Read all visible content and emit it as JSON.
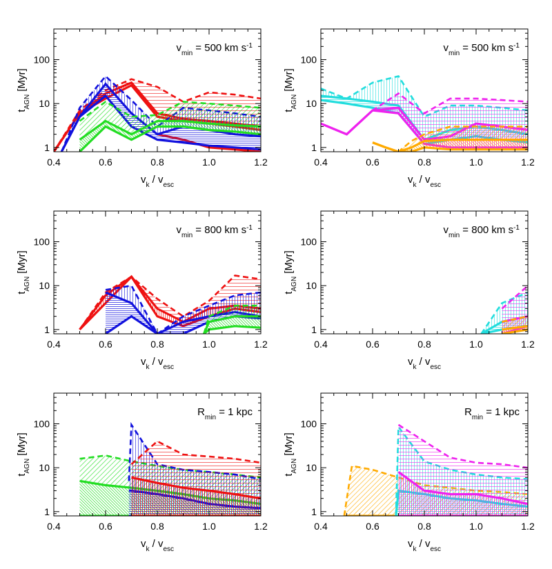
{
  "figure": {
    "xlabel_main": "v",
    "xlabel_sub1": "k",
    "xlabel_mid": " / v",
    "xlabel_sub2": "esc",
    "ylabel_main": "t",
    "ylabel_sub": "AGN",
    "ylabel_tail": " [Myr]"
  },
  "colors": {
    "red": "#ee1111",
    "blue": "#1111dd",
    "green": "#22dd22",
    "cyan": "#22dddd",
    "magenta": "#ee22ee",
    "orange": "#ffaa00"
  },
  "chart_data": [
    {
      "type": "area",
      "panel": "top-left",
      "xlim": [
        0.4,
        1.2
      ],
      "ylim": [
        0.8,
        500
      ],
      "yscale": "log",
      "xticks": [
        "0.4",
        "0.6",
        "0.8",
        "1.0",
        "1.2"
      ],
      "yticks": [
        "1",
        "10",
        "100"
      ],
      "annotation": {
        "main": "v",
        "sub": "min",
        "rest": " = 500 km s",
        "sup": "-1"
      },
      "series": [
        {
          "color": "red",
          "x": [
            0.4,
            0.5,
            0.6,
            0.7,
            0.8,
            0.9,
            1.0,
            1.1,
            1.2
          ],
          "low": [
            0.8,
            6,
            13,
            26,
            5,
            4,
            3.5,
            3,
            2.5
          ],
          "mid": [
            0.8,
            6,
            17,
            30,
            6,
            4.5,
            4,
            3.5,
            3
          ],
          "high": [
            0.8,
            7,
            20,
            36,
            24,
            11,
            18,
            16,
            13
          ],
          "bottom": [
            null,
            null,
            null,
            null,
            2,
            1.5,
            1,
            0.9,
            0.8
          ]
        },
        {
          "color": "blue",
          "x": [
            0.43,
            0.5,
            0.6,
            0.7,
            0.8,
            0.9,
            1.0,
            1.1,
            1.2
          ],
          "low": [
            0.8,
            5,
            15,
            3,
            1.5,
            1.3,
            1.1,
            1,
            0.9
          ],
          "mid": [
            0.8,
            5,
            28,
            6,
            2,
            3,
            2.5,
            2,
            1.8
          ],
          "high": [
            0.8,
            8,
            42,
            12,
            3,
            8,
            7,
            6,
            5
          ]
        },
        {
          "color": "green",
          "x": [
            0.5,
            0.6,
            0.7,
            0.8,
            0.9,
            1.0,
            1.1,
            1.2
          ],
          "low": [
            0.8,
            3,
            1.5,
            3,
            3,
            2.5,
            2.3,
            2
          ],
          "mid": [
            1.5,
            4,
            2,
            4,
            4,
            3.5,
            3.2,
            3
          ],
          "high": [
            4,
            11,
            5,
            5.5,
            11,
            10,
            9,
            8
          ]
        }
      ]
    },
    {
      "type": "area",
      "panel": "top-right",
      "xlim": [
        0.4,
        1.2
      ],
      "ylim": [
        0.8,
        500
      ],
      "yscale": "log",
      "xticks": [
        "0.4",
        "0.6",
        "0.8",
        "1.0",
        "1.2"
      ],
      "yticks": [
        "1",
        "10",
        "100"
      ],
      "annotation": {
        "main": "v",
        "sub": "min",
        "rest": " = 500 km s",
        "sup": "-1"
      },
      "series": [
        {
          "color": "cyan",
          "x": [
            0.4,
            0.5,
            0.6,
            0.7,
            0.8,
            0.9,
            1.0,
            1.1,
            1.2
          ],
          "low": [
            12,
            10,
            8,
            6,
            1.2,
            1.5,
            1.8,
            1.5,
            1.3
          ],
          "mid": [
            15,
            13,
            11,
            9,
            1.5,
            2.5,
            3,
            2.5,
            2
          ],
          "high": [
            22,
            13,
            30,
            42,
            5,
            9,
            9,
            8,
            7
          ]
        },
        {
          "color": "magenta",
          "x": [
            0.4,
            0.5,
            0.6,
            0.7,
            0.8,
            0.9,
            1.0,
            1.1,
            1.2
          ],
          "low": [
            3.5,
            2,
            7,
            6,
            1.2,
            1,
            1,
            1,
            1
          ],
          "mid": [
            3.5,
            2,
            7,
            8,
            1.5,
            1.8,
            3.5,
            3,
            2.5
          ],
          "high": [
            3.5,
            2,
            7,
            17,
            6,
            13,
            13,
            12,
            11
          ]
        },
        {
          "color": "orange",
          "x": [
            0.6,
            0.65,
            0.7,
            0.75,
            0.8,
            0.9,
            1.0,
            1.1,
            1.2
          ],
          "low": [
            1.3,
            1,
            0.8,
            0.8,
            1,
            0.9,
            0.9,
            0.9,
            0.9
          ],
          "mid": [
            1.3,
            1,
            0.8,
            1,
            1.4,
            1.5,
            1.5,
            1.5,
            1.5
          ],
          "high": [
            1.3,
            1,
            0.8,
            1.4,
            2,
            3,
            3,
            3,
            3
          ]
        }
      ]
    },
    {
      "type": "area",
      "panel": "middle-left",
      "xlim": [
        0.4,
        1.2
      ],
      "ylim": [
        0.8,
        500
      ],
      "yscale": "log",
      "xticks": [
        "0.4",
        "0.6",
        "0.8",
        "1.0",
        "1.2"
      ],
      "yticks": [
        "1",
        "10",
        "100"
      ],
      "annotation": {
        "main": "v",
        "sub": "min",
        "rest": " = 800 km s",
        "sup": "-1"
      },
      "series": [
        {
          "color": "red",
          "x": [
            0.5,
            0.6,
            0.7,
            0.8,
            0.9,
            1.0,
            1.1,
            1.2
          ],
          "low": [
            1,
            4,
            16,
            2,
            1.2,
            2,
            3,
            2.5
          ],
          "mid": [
            1,
            6,
            16,
            3,
            1.5,
            3,
            3.5,
            3
          ],
          "high": [
            1,
            7,
            16,
            5,
            2,
            4.5,
            17,
            14
          ]
        },
        {
          "color": "blue",
          "x": [
            0.6,
            0.7,
            0.8,
            0.9,
            1.0,
            1.1,
            1.2
          ],
          "low": [
            0.8,
            2,
            0.8,
            0.8,
            1.5,
            2,
            1.8
          ],
          "mid": [
            7,
            4,
            0.8,
            1.5,
            2,
            2.5,
            2
          ],
          "high": [
            8,
            10,
            0.8,
            2,
            3.5,
            6,
            7
          ]
        },
        {
          "color": "green",
          "x": [
            0.98,
            1.0,
            1.1,
            1.2
          ],
          "low": [
            0.8,
            1,
            1.2,
            1.1
          ],
          "mid": [
            0.8,
            1.5,
            2,
            2
          ],
          "high": [
            0.8,
            2,
            3.5,
            3.5
          ]
        }
      ]
    },
    {
      "type": "area",
      "panel": "middle-right",
      "xlim": [
        0.4,
        1.2
      ],
      "ylim": [
        0.8,
        500
      ],
      "yscale": "log",
      "xticks": [
        "0.4",
        "0.6",
        "0.8",
        "1.0",
        "1.2"
      ],
      "yticks": [
        "1",
        "10",
        "100"
      ],
      "annotation": {
        "main": "v",
        "sub": "min",
        "rest": " = 800 km s",
        "sup": "-1"
      },
      "series": [
        {
          "color": "cyan",
          "x": [
            1.02,
            1.1,
            1.2
          ],
          "low": [
            0.8,
            1,
            1.2
          ],
          "mid": [
            0.8,
            1.5,
            2
          ],
          "high": [
            0.8,
            4,
            7
          ]
        },
        {
          "color": "magenta",
          "x": [
            1.1,
            1.2
          ],
          "low": [
            0.8,
            1.2
          ],
          "mid": [
            1.5,
            2
          ],
          "high": [
            3,
            10
          ]
        },
        {
          "color": "orange",
          "x": [
            1.1,
            1.2
          ],
          "low": [
            0.8,
            1
          ],
          "mid": [
            1,
            1.2
          ],
          "high": [
            1.5,
            2
          ]
        }
      ]
    },
    {
      "type": "area",
      "panel": "bottom-left",
      "xlim": [
        0.4,
        1.2
      ],
      "ylim": [
        0.8,
        500
      ],
      "yscale": "log",
      "xticks": [
        "0.4",
        "0.6",
        "0.8",
        "1.0",
        "1.2"
      ],
      "yticks": [
        "1",
        "10",
        "100"
      ],
      "annotation": {
        "main": "R",
        "sub": "min",
        "rest": " = 1 kpc",
        "sup": ""
      },
      "series": [
        {
          "color": "green",
          "x": [
            0.5,
            0.6,
            0.7,
            0.8,
            0.9,
            1.0,
            1.1,
            1.2
          ],
          "low": [
            0.8,
            0.8,
            0.8,
            0.8,
            0.8,
            0.8,
            0.8,
            0.8
          ],
          "mid": [
            5,
            4,
            3.5,
            3,
            2.5,
            2,
            1.8,
            1.5
          ],
          "high": [
            16,
            19,
            14,
            11,
            9,
            8,
            7,
            6
          ]
        },
        {
          "color": "blue",
          "x": [
            0.69,
            0.7,
            0.8,
            0.9,
            1.0,
            1.1,
            1.2
          ],
          "low": [
            0.8,
            0.8,
            0.8,
            0.8,
            0.8,
            0.8,
            0.8
          ],
          "mid": [
            3,
            3,
            2.5,
            2,
            1.5,
            1.3,
            1.2
          ],
          "high": [
            5,
            95,
            12,
            9,
            8,
            7,
            5.5
          ]
        },
        {
          "color": "red",
          "x": [
            0.7,
            0.8,
            0.9,
            1.0,
            1.1,
            1.2
          ],
          "low": [
            0.8,
            0.8,
            0.8,
            0.8,
            0.8,
            0.8
          ],
          "mid": [
            6,
            4.5,
            3.5,
            3,
            2.5,
            2
          ],
          "high": [
            12,
            40,
            20,
            18,
            16,
            13
          ]
        }
      ]
    },
    {
      "type": "area",
      "panel": "bottom-right",
      "xlim": [
        0.4,
        1.2
      ],
      "ylim": [
        0.8,
        500
      ],
      "yscale": "log",
      "xticks": [
        "0.4",
        "0.6",
        "0.8",
        "1.0",
        "1.2"
      ],
      "yticks": [
        "1",
        "10",
        "100"
      ],
      "annotation": {
        "main": "R",
        "sub": "min",
        "rest": " = 1 kpc",
        "sup": ""
      },
      "series": [
        {
          "color": "orange",
          "x": [
            0.49,
            0.52,
            0.6,
            0.7,
            0.8,
            0.9,
            1.0,
            1.1,
            1.2
          ],
          "low": [
            0.8,
            0.8,
            0.8,
            0.8,
            0.8,
            0.8,
            0.8,
            0.8,
            0.8
          ],
          "mid": [
            0.8,
            0.8,
            0.8,
            0.8,
            0.8,
            0.8,
            0.8,
            0.8,
            0.8
          ],
          "high": [
            0.8,
            11,
            9,
            6,
            4,
            3.5,
            3,
            2.8,
            2.5
          ]
        },
        {
          "color": "cyan",
          "x": [
            0.69,
            0.7,
            0.8,
            0.9,
            1.0,
            1.1,
            1.2
          ],
          "low": [
            0.8,
            0.8,
            0.8,
            0.8,
            0.8,
            0.8,
            0.8
          ],
          "mid": [
            0.8,
            3,
            2.5,
            2,
            1.8,
            1.5,
            1.3
          ],
          "high": [
            0.8,
            85,
            14,
            9,
            7,
            6,
            5.5
          ]
        },
        {
          "color": "magenta",
          "x": [
            0.7,
            0.8,
            0.9,
            1.0,
            1.1,
            1.2
          ],
          "low": [
            0.8,
            0.8,
            0.8,
            0.8,
            0.8,
            0.8
          ],
          "mid": [
            8,
            3,
            2.5,
            2.5,
            2,
            1.5
          ],
          "high": [
            95,
            40,
            17,
            13,
            12,
            10
          ]
        }
      ]
    }
  ]
}
